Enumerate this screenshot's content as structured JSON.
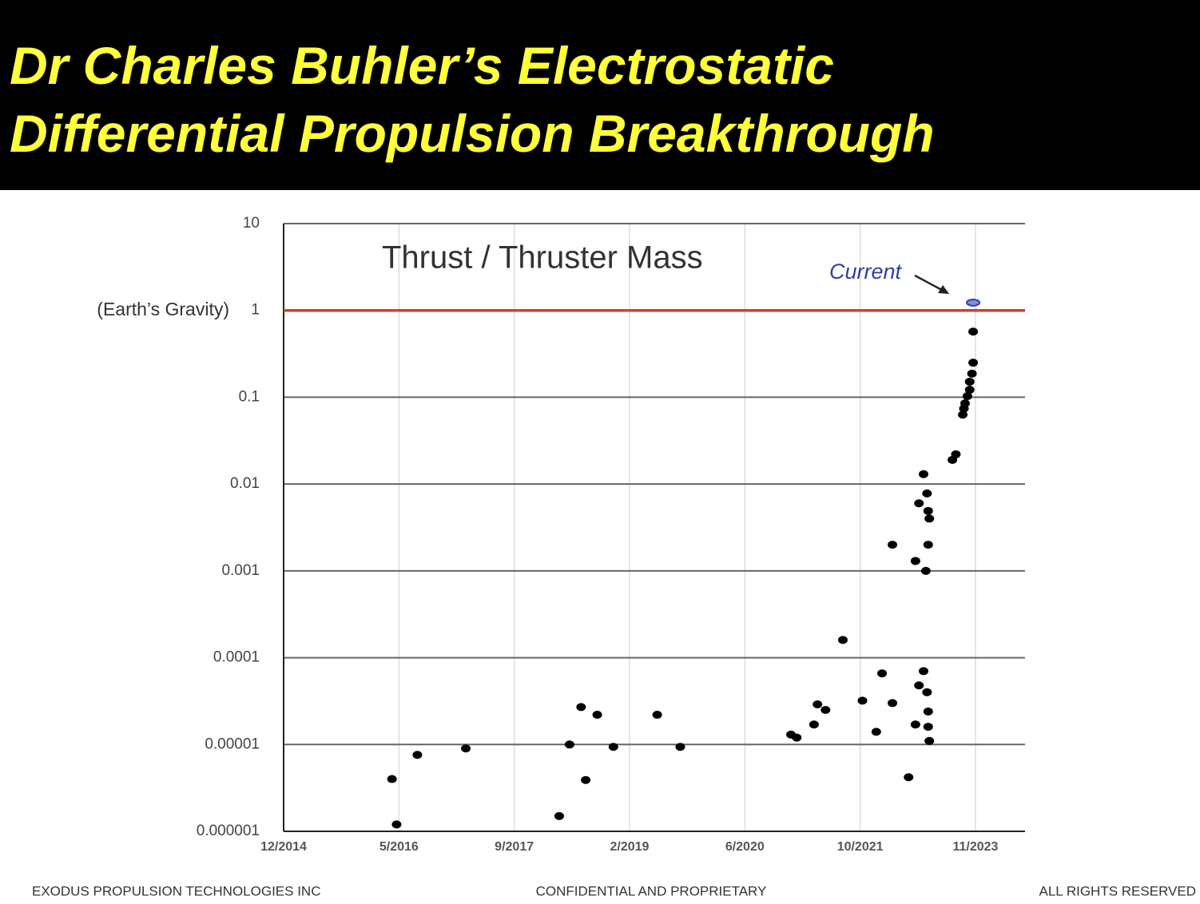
{
  "header": {
    "title": [
      "Dr Charles Buhler’s Electrostatic",
      "Differential Propulsion Breakthrough"
    ]
  },
  "chart_data": {
    "type": "scatter",
    "title": "Thrust / Thruster Mass",
    "x": [
      0.94,
      0.98,
      1.16,
      1.58,
      2.39,
      2.48,
      2.58,
      2.62,
      2.72,
      2.86,
      3.24,
      3.44,
      4.4,
      4.45,
      4.6,
      4.63,
      4.7,
      4.85,
      5.02,
      5.14,
      5.19,
      5.28,
      5.28,
      5.42,
      5.48,
      5.48,
      5.51,
      5.51,
      5.55,
      5.55,
      5.57,
      5.58,
      5.58,
      5.59,
      5.59,
      5.59,
      5.59,
      5.6,
      5.6,
      5.8,
      5.83,
      5.89,
      5.9,
      5.91,
      5.93,
      5.95,
      5.95,
      5.97,
      5.98,
      5.98
    ],
    "values": [
      4e-06,
      1.2e-06,
      7.6e-06,
      9e-06,
      1.5e-06,
      1e-05,
      2.7e-05,
      3.9e-06,
      2.2e-05,
      9.4e-06,
      2.2e-05,
      9.4e-06,
      1.3e-05,
      1.2e-05,
      1.7e-05,
      2.9e-05,
      2.5e-05,
      0.00016,
      3.2e-05,
      1.4e-05,
      6.6e-05,
      3e-05,
      0.002,
      4.2e-06,
      0.0013,
      1.7e-05,
      0.006,
      4.8e-05,
      0.013,
      7e-05,
      0.001,
      0.0078,
      4e-05,
      0.002,
      2.4e-05,
      1.6e-05,
      0.0049,
      0.004,
      1.1e-05,
      0.019,
      0.022,
      0.063,
      0.074,
      0.085,
      0.103,
      0.122,
      0.151,
      0.187,
      0.25,
      0.57
    ],
    "color": "#000000",
    "highlight": {
      "text": "Current",
      "x": 5.98,
      "value": 1.23,
      "color": "#2b3fa8"
    },
    "reference_line": {
      "value": 1,
      "label": "(Earth’s Gravity)",
      "color": "#c8442c"
    },
    "xlim": [
      0,
      6.43
    ],
    "xticks": [
      {
        "value": 0,
        "label": "12/2014"
      },
      {
        "value": 1,
        "label": "5/2016"
      },
      {
        "value": 2,
        "label": "9/2017"
      },
      {
        "value": 3,
        "label": "2/2019"
      },
      {
        "value": 4,
        "label": "6/2020"
      },
      {
        "value": 5,
        "label": "10/2021"
      },
      {
        "value": 6,
        "label": "11/2023"
      }
    ],
    "yscale": "log",
    "ylim": [
      1e-06,
      10
    ],
    "yticks": [
      1e-06,
      1e-05,
      0.0001,
      0.001,
      0.01,
      0.1,
      1,
      10
    ],
    "grid": true
  },
  "footer": {
    "left": "EXODUS PROPULSION TECHNOLOGIES INC",
    "center": "CONFIDENTIAL  AND  PROPRIETARY",
    "right": "ALL RIGHTS RESERVED"
  }
}
